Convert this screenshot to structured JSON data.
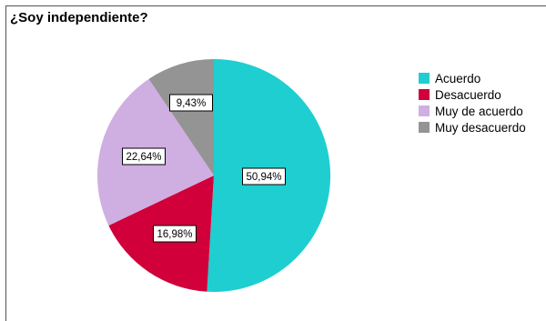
{
  "chart_data": {
    "type": "pie",
    "title": "¿Soy independiente?",
    "categories": [
      "Acuerdo",
      "Desacuerdo",
      "Muy de acuerdo",
      "Muy desacuerdo"
    ],
    "values": [
      50.94,
      16.98,
      22.64,
      9.43
    ],
    "labels": [
      "50,94%",
      "16,98%",
      "22,64%",
      "9,43%"
    ],
    "colors": [
      "#1fced0",
      "#d1003a",
      "#cfaee2",
      "#949494"
    ],
    "start_angle_deg": 0,
    "direction": "clockwise",
    "legend_position": "right"
  }
}
